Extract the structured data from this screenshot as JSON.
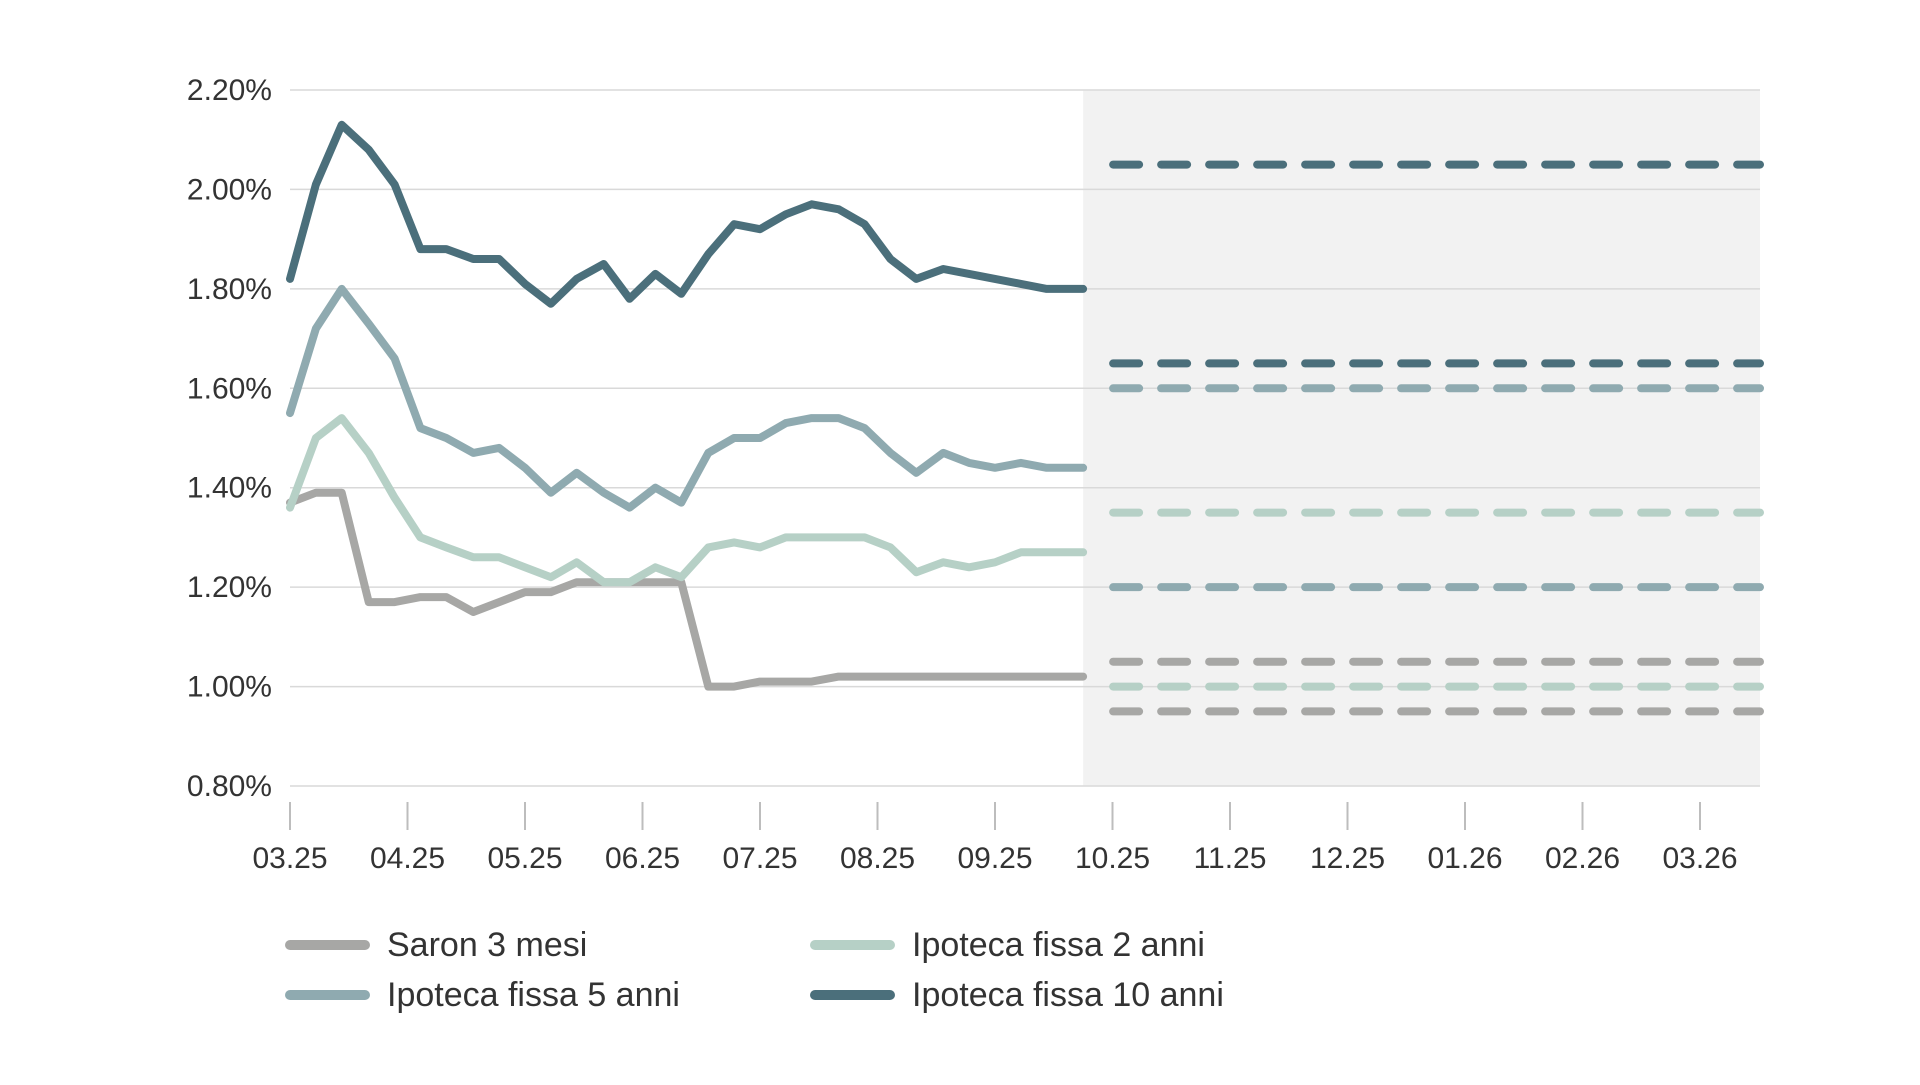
{
  "chart_data": {
    "type": "line",
    "title": "",
    "xlabel": "",
    "ylabel": "",
    "ylim": [
      0.8,
      2.2
    ],
    "y_ticks": [
      0.8,
      1.0,
      1.2,
      1.4,
      1.6,
      1.8,
      2.0,
      2.2
    ],
    "y_tick_labels": [
      "0.80%",
      "1.00%",
      "1.20%",
      "1.40%",
      "1.60%",
      "1.80%",
      "2.00%",
      "2.20%"
    ],
    "x_tick_labels": [
      "03.25",
      "04.25",
      "05.25",
      "06.25",
      "07.25",
      "08.25",
      "09.25",
      "10.25",
      "11.25",
      "12.25",
      "01.26",
      "02.26",
      "03.26"
    ],
    "x_range_months": [
      0,
      12.5
    ],
    "forecast_start_month": 6.75,
    "grid": "horizontal",
    "legend_position": "bottom",
    "series": [
      {
        "name": "Saron 3 mesi",
        "color": "#a7a7a5",
        "x": [
          0,
          0.22,
          0.44,
          0.67,
          0.89,
          1.11,
          1.33,
          1.56,
          1.78,
          2.0,
          2.22,
          2.44,
          2.67,
          2.89,
          3.11,
          3.33,
          3.56,
          3.78,
          4.0,
          4.22,
          4.44,
          4.67,
          4.89,
          5.11,
          5.33,
          5.56,
          5.78,
          6.0,
          6.22,
          6.44,
          6.75
        ],
        "values": [
          1.37,
          1.39,
          1.39,
          1.17,
          1.17,
          1.18,
          1.18,
          1.15,
          1.17,
          1.19,
          1.19,
          1.21,
          1.21,
          1.21,
          1.21,
          1.21,
          1.0,
          1.0,
          1.01,
          1.01,
          1.01,
          1.02,
          1.02,
          1.02,
          1.02,
          1.02,
          1.02,
          1.02,
          1.02,
          1.02,
          1.02
        ],
        "forecast": [
          0.95,
          1.05
        ]
      },
      {
        "name": "Ipoteca fissa 2 anni",
        "color": "#b6d0c6",
        "x": [
          0,
          0.22,
          0.44,
          0.67,
          0.89,
          1.11,
          1.33,
          1.56,
          1.78,
          2.0,
          2.22,
          2.44,
          2.67,
          2.89,
          3.11,
          3.33,
          3.56,
          3.78,
          4.0,
          4.22,
          4.44,
          4.67,
          4.89,
          5.11,
          5.33,
          5.56,
          5.78,
          6.0,
          6.22,
          6.44,
          6.75
        ],
        "values": [
          1.36,
          1.5,
          1.54,
          1.47,
          1.38,
          1.3,
          1.28,
          1.26,
          1.26,
          1.24,
          1.22,
          1.25,
          1.21,
          1.21,
          1.24,
          1.22,
          1.28,
          1.29,
          1.28,
          1.3,
          1.3,
          1.3,
          1.3,
          1.28,
          1.23,
          1.25,
          1.24,
          1.25,
          1.27,
          1.27,
          1.27
        ],
        "forecast": [
          1.0,
          1.35
        ]
      },
      {
        "name": "Ipoteca fissa 5 anni",
        "color": "#8faab0",
        "x": [
          0,
          0.22,
          0.44,
          0.67,
          0.89,
          1.11,
          1.33,
          1.56,
          1.78,
          2.0,
          2.22,
          2.44,
          2.67,
          2.89,
          3.11,
          3.33,
          3.56,
          3.78,
          4.0,
          4.22,
          4.44,
          4.67,
          4.89,
          5.11,
          5.33,
          5.56,
          5.78,
          6.0,
          6.22,
          6.44,
          6.75
        ],
        "values": [
          1.55,
          1.72,
          1.8,
          1.73,
          1.66,
          1.52,
          1.5,
          1.47,
          1.48,
          1.44,
          1.39,
          1.43,
          1.39,
          1.36,
          1.4,
          1.37,
          1.47,
          1.5,
          1.5,
          1.53,
          1.54,
          1.54,
          1.52,
          1.47,
          1.43,
          1.47,
          1.45,
          1.44,
          1.45,
          1.44,
          1.44
        ],
        "forecast": [
          1.2,
          1.6
        ]
      },
      {
        "name": "Ipoteca fissa 10 anni",
        "color": "#4b6f7b",
        "x": [
          0,
          0.22,
          0.44,
          0.67,
          0.89,
          1.11,
          1.33,
          1.56,
          1.78,
          2.0,
          2.22,
          2.44,
          2.67,
          2.89,
          3.11,
          3.33,
          3.56,
          3.78,
          4.0,
          4.22,
          4.44,
          4.67,
          4.89,
          5.11,
          5.33,
          5.56,
          5.78,
          6.0,
          6.22,
          6.44,
          6.75
        ],
        "values": [
          1.82,
          2.01,
          2.13,
          2.08,
          2.01,
          1.88,
          1.88,
          1.86,
          1.86,
          1.81,
          1.77,
          1.82,
          1.85,
          1.78,
          1.83,
          1.79,
          1.87,
          1.93,
          1.92,
          1.95,
          1.97,
          1.96,
          1.93,
          1.86,
          1.82,
          1.84,
          1.83,
          1.82,
          1.81,
          1.8,
          1.8
        ],
        "forecast": [
          1.65,
          2.05
        ]
      }
    ],
    "legend_order": [
      "Saron 3 mesi",
      "Ipoteca fissa 2 anni",
      "Ipoteca fissa 5 anni",
      "Ipoteca fissa 10 anni"
    ],
    "colors": {
      "grid": "#d9d9d9",
      "forecast_background": "#f2f2f2",
      "axis_text": "#333333"
    }
  }
}
